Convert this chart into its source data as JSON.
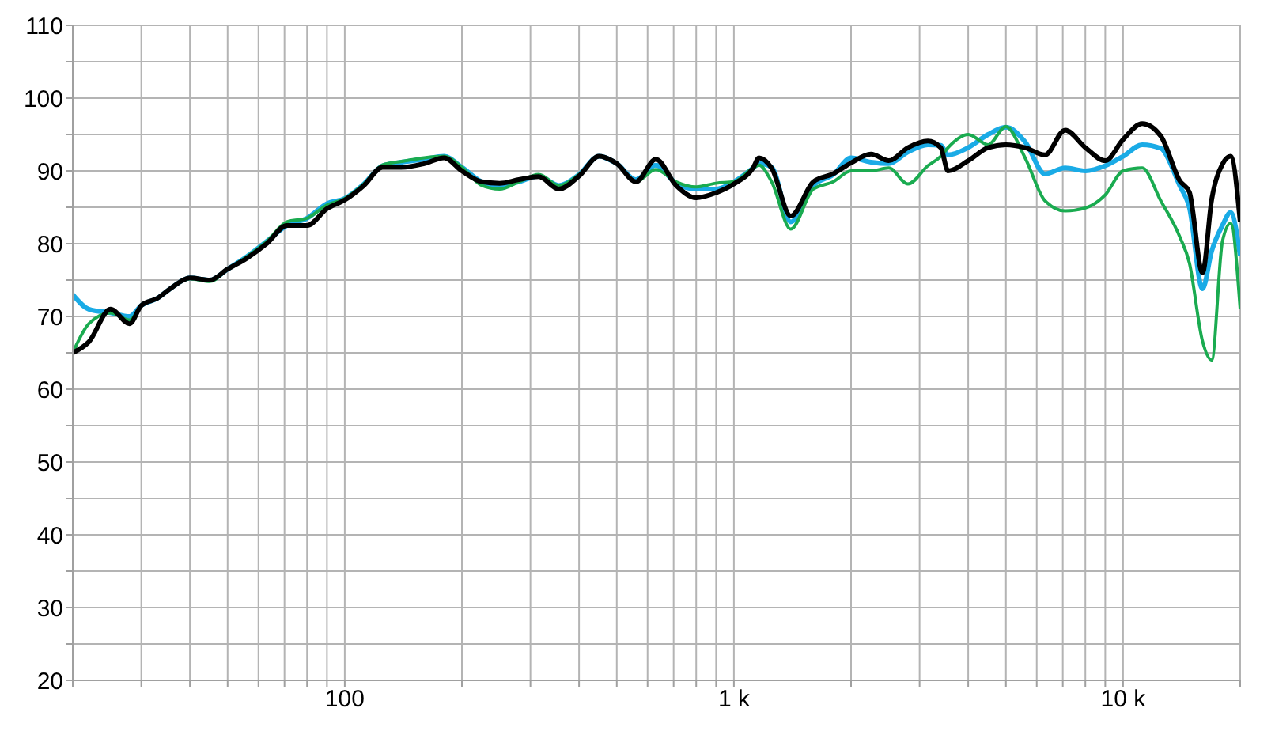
{
  "chart_data": {
    "type": "line",
    "log": "x",
    "grid": true,
    "x": [
      20,
      22,
      25,
      28,
      30,
      33,
      36,
      40,
      45,
      50,
      56,
      63,
      71,
      80,
      90,
      100,
      112,
      125,
      140,
      160,
      180,
      200,
      225,
      250,
      280,
      315,
      355,
      400,
      450,
      500,
      560,
      630,
      710,
      800,
      900,
      1000,
      1120,
      1160,
      1250,
      1400,
      1600,
      1800,
      2000,
      2250,
      2500,
      2800,
      3150,
      3400,
      3550,
      4000,
      4500,
      5000,
      5600,
      6300,
      7100,
      8000,
      9000,
      10000,
      11200,
      12500,
      14000,
      14800,
      16000,
      16900,
      18000,
      18900,
      20000
    ],
    "xlim": [
      20,
      20000
    ],
    "xticks": [
      {
        "value": 20,
        "label": null
      },
      {
        "value": 30,
        "label": null
      },
      {
        "value": 40,
        "label": null
      },
      {
        "value": 50,
        "label": null
      },
      {
        "value": 60,
        "label": null
      },
      {
        "value": 70,
        "label": null
      },
      {
        "value": 80,
        "label": null
      },
      {
        "value": 90,
        "label": null
      },
      100,
      {
        "value": 200,
        "label": null
      },
      {
        "value": 300,
        "label": null
      },
      {
        "value": 400,
        "label": null
      },
      {
        "value": 500,
        "label": null
      },
      {
        "value": 600,
        "label": null
      },
      {
        "value": 700,
        "label": null
      },
      {
        "value": 800,
        "label": null
      },
      {
        "value": 900,
        "label": null
      },
      {
        "value": 1000,
        "label": "1 k"
      },
      {
        "value": 2000,
        "label": null
      },
      {
        "value": 3000,
        "label": null
      },
      {
        "value": 4000,
        "label": null
      },
      {
        "value": 5000,
        "label": null
      },
      {
        "value": 6000,
        "label": null
      },
      {
        "value": 7000,
        "label": null
      },
      {
        "value": 8000,
        "label": null
      },
      {
        "value": 9000,
        "label": null
      },
      {
        "value": 10000,
        "label": "10 k"
      },
      {
        "value": 20000,
        "label": null
      }
    ],
    "ylim": [
      20,
      110
    ],
    "yticks": [
      20,
      {
        "value": 25,
        "label": null
      },
      30,
      {
        "value": 35,
        "label": null
      },
      40,
      {
        "value": 45,
        "label": null
      },
      50,
      {
        "value": 55,
        "label": null
      },
      60,
      {
        "value": 65,
        "label": null
      },
      70,
      {
        "value": 75,
        "label": null
      },
      80,
      {
        "value": 85,
        "label": null
      },
      90,
      {
        "value": 95,
        "label": null
      },
      100,
      {
        "value": 105,
        "label": null
      },
      110
    ],
    "series": [
      {
        "color": "#1aabe6",
        "values": [
          73,
          71,
          70.5,
          70,
          71.5,
          72.5,
          74,
          75.3,
          75,
          76.5,
          78.2,
          80.3,
          82.5,
          83.5,
          85.5,
          86.2,
          88.2,
          90.7,
          91.2,
          91.6,
          92,
          90.5,
          88.5,
          88,
          88.5,
          89.3,
          88,
          89.5,
          92,
          91,
          88.8,
          90.8,
          88.3,
          87.5,
          87.5,
          88.5,
          90.4,
          91,
          90.5,
          83,
          88,
          89.5,
          91.8,
          91.2,
          91,
          92.6,
          93.6,
          93.5,
          92.2,
          93.2,
          95,
          96,
          94,
          89.6,
          90.4,
          90,
          90.7,
          92,
          93.6,
          93.1,
          87.9,
          85,
          73.8,
          79,
          82.5,
          84.3,
          78.3
        ]
      },
      {
        "color": "#1aab50",
        "values": [
          65,
          69,
          70.5,
          69.5,
          71.5,
          72.5,
          74,
          75.2,
          74.8,
          76.5,
          78.2,
          80.3,
          83,
          83.5,
          85.3,
          86.2,
          88.2,
          90.8,
          91.3,
          91.8,
          92,
          90.5,
          88,
          87.5,
          88.5,
          89.5,
          88,
          89.5,
          92,
          91,
          88.5,
          90.2,
          88.5,
          87.8,
          88.3,
          88.5,
          90.4,
          90.8,
          88.5,
          82,
          87.5,
          88.5,
          90,
          90,
          90.4,
          88.2,
          90.7,
          92,
          93.2,
          95,
          93.6,
          96.1,
          91.8,
          85.9,
          84.5,
          84.9,
          86.7,
          90,
          90.4,
          85.9,
          80.9,
          77.4,
          66.6,
          64,
          80.3,
          82.8,
          71
        ]
      },
      {
        "color": "#000000",
        "values": [
          65,
          66.5,
          71,
          69,
          71.5,
          72.5,
          74,
          75.3,
          75,
          76.5,
          78,
          80,
          82.5,
          82.5,
          84.8,
          86,
          88,
          90.5,
          90.5,
          91,
          91.8,
          90,
          88.5,
          88.3,
          88.8,
          89.2,
          87.5,
          89.3,
          92,
          91,
          88.5,
          91.6,
          88,
          86.3,
          87,
          88.2,
          90.4,
          91.8,
          90.4,
          83.8,
          88.5,
          89.6,
          91.1,
          92.3,
          91.4,
          93.2,
          94.1,
          93.2,
          90,
          91.4,
          93.2,
          93.6,
          93.2,
          92.2,
          95.6,
          93.2,
          91.4,
          94.3,
          96.5,
          94.8,
          88.6,
          87.1,
          76,
          86.1,
          90.9,
          92,
          83
        ]
      }
    ]
  }
}
